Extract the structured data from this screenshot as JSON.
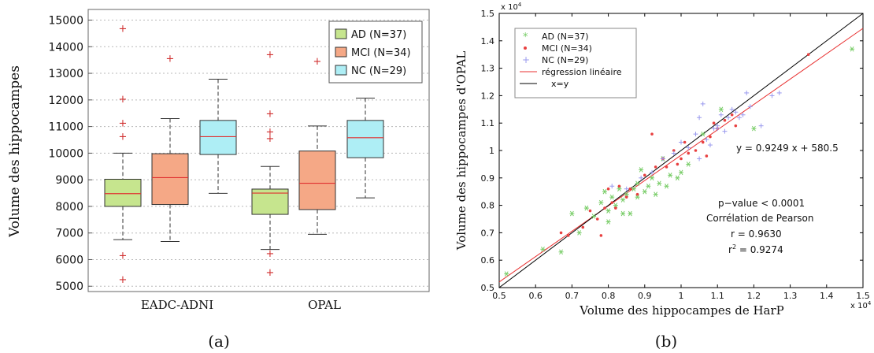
{
  "chart_data": [
    {
      "type": "boxplot",
      "panel_label": "(a)",
      "ylabel": "Volume des hippocampes",
      "ylim": [
        4800,
        15400
      ],
      "yticks": [
        5000,
        6000,
        7000,
        8000,
        9000,
        10000,
        11000,
        12000,
        13000,
        14000,
        15000
      ],
      "grid": true,
      "legend_position": "top-right",
      "groups": [
        "EADC-ADNI",
        "OPAL"
      ],
      "series": [
        {
          "name": "AD (N=37)",
          "color": "#c6e58e"
        },
        {
          "name": "MCI (N=34)",
          "color": "#f5a886"
        },
        {
          "name": "NC (N=29)",
          "color": "#aeeef5"
        }
      ],
      "boxes": [
        {
          "group": "EADC-ADNI",
          "series": "AD (N=37)",
          "whisker_low": 6750,
          "q1": 8000,
          "median": 8480,
          "q3": 9020,
          "whisker_high": 10000,
          "outliers": [
            14700,
            12050,
            11150,
            10650,
            6180,
            5280
          ]
        },
        {
          "group": "EADC-ADNI",
          "series": "MCI (N=34)",
          "whisker_low": 6680,
          "q1": 8070,
          "median": 9080,
          "q3": 9980,
          "whisker_high": 11300,
          "outliers": [
            13580
          ]
        },
        {
          "group": "EADC-ADNI",
          "series": "NC (N=29)",
          "whisker_low": 8490,
          "q1": 9950,
          "median": 10620,
          "q3": 11230,
          "whisker_high": 12780,
          "outliers": []
        },
        {
          "group": "OPAL",
          "series": "AD (N=37)",
          "whisker_low": 6380,
          "q1": 7700,
          "median": 8500,
          "q3": 8650,
          "whisker_high": 9500,
          "outliers": [
            13720,
            11500,
            10820,
            10580,
            6250,
            5540
          ]
        },
        {
          "group": "OPAL",
          "series": "MCI (N=34)",
          "whisker_low": 6950,
          "q1": 7880,
          "median": 8870,
          "q3": 10080,
          "whisker_high": 11020,
          "outliers": [
            13470
          ]
        },
        {
          "group": "OPAL",
          "series": "NC (N=29)",
          "whisker_low": 8320,
          "q1": 9830,
          "median": 10580,
          "q3": 11230,
          "whisker_high": 12070,
          "outliers": []
        }
      ]
    },
    {
      "type": "scatter",
      "panel_label": "(b)",
      "xlabel": "Volume des hippocampes de HarP",
      "ylabel": "Volume des hippocampes d'OPAL",
      "xlim": [
        0.5,
        1.5
      ],
      "ylim": [
        0.5,
        1.5
      ],
      "xticks": [
        0.5,
        0.6,
        0.7,
        0.8,
        0.9,
        1.0,
        1.1,
        1.2,
        1.3,
        1.4,
        1.5
      ],
      "yticks": [
        0.5,
        0.6,
        0.7,
        0.8,
        0.9,
        1.0,
        1.1,
        1.2,
        1.3,
        1.4,
        1.5
      ],
      "x_multiplier": "x 10^4",
      "y_multiplier": "x 10^4",
      "legend_position": "top-left",
      "series": [
        {
          "name": "AD (N=37)",
          "color": "#77cc66",
          "marker": "asterisk",
          "points": [
            [
              0.52,
              0.55
            ],
            [
              0.62,
              0.64
            ],
            [
              0.67,
              0.63
            ],
            [
              0.7,
              0.77
            ],
            [
              0.72,
              0.7
            ],
            [
              0.74,
              0.79
            ],
            [
              0.76,
              0.76
            ],
            [
              0.78,
              0.81
            ],
            [
              0.79,
              0.85
            ],
            [
              0.8,
              0.78
            ],
            [
              0.81,
              0.83
            ],
            [
              0.82,
              0.8
            ],
            [
              0.83,
              0.86
            ],
            [
              0.84,
              0.82
            ],
            [
              0.85,
              0.84
            ],
            [
              0.86,
              0.77
            ],
            [
              0.87,
              0.86
            ],
            [
              0.88,
              0.83
            ],
            [
              0.89,
              0.93
            ],
            [
              0.9,
              0.85
            ],
            [
              0.91,
              0.87
            ],
            [
              0.92,
              0.9
            ],
            [
              0.93,
              0.84
            ],
            [
              0.94,
              0.88
            ],
            [
              0.96,
              0.87
            ],
            [
              0.97,
              0.91
            ],
            [
              0.99,
              0.9
            ],
            [
              1.0,
              0.92
            ],
            [
              1.02,
              0.95
            ],
            [
              0.8,
              0.74
            ],
            [
              0.84,
              0.77
            ],
            [
              0.88,
              0.88
            ],
            [
              0.95,
              0.97
            ],
            [
              1.06,
              1.06
            ],
            [
              1.11,
              1.15
            ],
            [
              1.2,
              1.08
            ],
            [
              1.47,
              1.37
            ]
          ]
        },
        {
          "name": "MCI (N=34)",
          "color": "#e84040",
          "marker": "dot",
          "points": [
            [
              0.67,
              0.7
            ],
            [
              0.69,
              0.69
            ],
            [
              0.73,
              0.72
            ],
            [
              0.75,
              0.78
            ],
            [
              0.77,
              0.75
            ],
            [
              0.78,
              0.69
            ],
            [
              0.79,
              0.79
            ],
            [
              0.8,
              0.86
            ],
            [
              0.81,
              0.81
            ],
            [
              0.82,
              0.79
            ],
            [
              0.83,
              0.87
            ],
            [
              0.85,
              0.83
            ],
            [
              0.86,
              0.86
            ],
            [
              0.88,
              0.84
            ],
            [
              0.9,
              0.91
            ],
            [
              0.92,
              1.06
            ],
            [
              0.93,
              0.94
            ],
            [
              0.95,
              0.97
            ],
            [
              0.96,
              0.94
            ],
            [
              0.98,
              1.0
            ],
            [
              0.99,
              0.95
            ],
            [
              1.0,
              0.97
            ],
            [
              1.01,
              1.03
            ],
            [
              1.02,
              0.99
            ],
            [
              1.04,
              1.0
            ],
            [
              1.06,
              1.03
            ],
            [
              1.08,
              1.05
            ],
            [
              1.09,
              1.1
            ],
            [
              1.1,
              1.08
            ],
            [
              1.12,
              1.11
            ],
            [
              1.14,
              1.13
            ],
            [
              1.15,
              1.09
            ],
            [
              1.07,
              0.98
            ],
            [
              1.35,
              1.35
            ]
          ]
        },
        {
          "name": "NC (N=29)",
          "color": "#9999ee",
          "marker": "plus",
          "points": [
            [
              0.81,
              0.87
            ],
            [
              0.85,
              0.86
            ],
            [
              0.89,
              0.9
            ],
            [
              0.92,
              0.92
            ],
            [
              0.95,
              0.97
            ],
            [
              0.98,
              0.99
            ],
            [
              1.0,
              1.03
            ],
            [
              1.02,
              1.01
            ],
            [
              1.04,
              1.06
            ],
            [
              1.05,
              0.97
            ],
            [
              1.05,
              1.12
            ],
            [
              1.06,
              1.17
            ],
            [
              1.07,
              1.04
            ],
            [
              1.08,
              1.02
            ],
            [
              1.09,
              1.08
            ],
            [
              1.1,
              1.08
            ],
            [
              1.11,
              1.13
            ],
            [
              1.12,
              1.07
            ],
            [
              1.13,
              1.12
            ],
            [
              1.14,
              1.15
            ],
            [
              1.15,
              1.14
            ],
            [
              1.16,
              1.12
            ],
            [
              1.17,
              1.13
            ],
            [
              1.18,
              1.21
            ],
            [
              1.19,
              1.16
            ],
            [
              1.22,
              1.09
            ],
            [
              1.25,
              1.2
            ],
            [
              1.27,
              1.21
            ],
            [
              1.1,
              1.09
            ]
          ]
        }
      ],
      "lines": [
        {
          "name": "régression linéaire",
          "color": "#e83030",
          "slope": 0.9249,
          "intercept": 0.05805
        },
        {
          "name": "x=y",
          "color": "#000000",
          "slope": 1.0,
          "intercept": 0.0
        }
      ],
      "annotations": {
        "equation": "y = 0.9249 x + 580.5",
        "pvalue": "p−value < 0.0001",
        "correlation": "Corrélation de Pearson",
        "r": "r = 0.9630",
        "r2_prefix": "r",
        "r2_sup": "2",
        "r2_value": " = 0.9274"
      }
    }
  ]
}
